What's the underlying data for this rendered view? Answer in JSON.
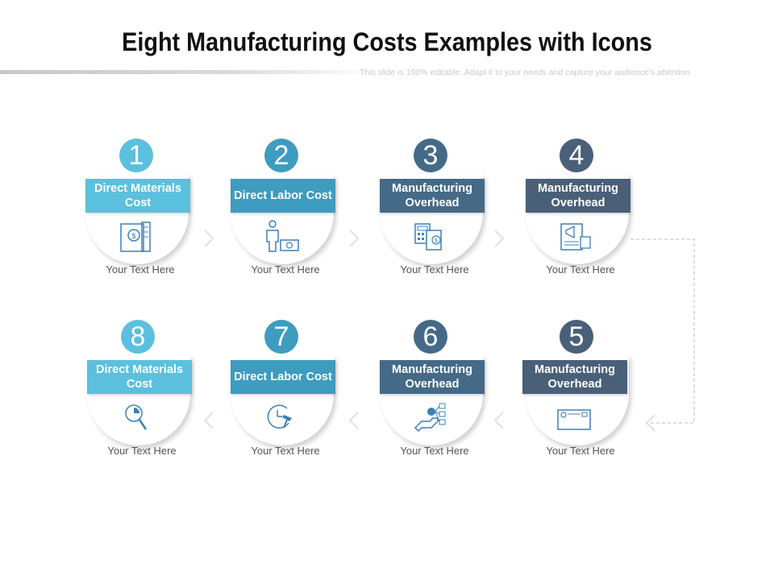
{
  "header": {
    "title": "Eight Manufacturing Costs Examples with Icons",
    "subtitle": "This slide is 100% editable. Adapt it to your needs and capture your audience's attention."
  },
  "colors": {
    "light_blue": "#5bc0de",
    "mid_blue": "#3d9cbf",
    "slate": "#446a88",
    "dark_slate": "#4a5f78",
    "icon_blue": "#3c80b8"
  },
  "steps": [
    {
      "number": "1",
      "label": "Direct Materials Cost",
      "text": "Your Text Here",
      "icon": "money-document-icon"
    },
    {
      "number": "2",
      "label": "Direct Labor Cost",
      "text": "Your Text Here",
      "icon": "worker-cash-icon"
    },
    {
      "number": "3",
      "label": "Manufacturing Overhead",
      "text": "Your Text Here",
      "icon": "calculator-invoice-icon"
    },
    {
      "number": "4",
      "label": "Manufacturing Overhead",
      "text": "Your Text Here",
      "icon": "marketing-report-icon"
    },
    {
      "number": "5",
      "label": "Manufacturing Overhead",
      "text": "Your Text Here",
      "icon": "envelope-icon"
    },
    {
      "number": "6",
      "label": "Manufacturing Overhead",
      "text": "Your Text Here",
      "icon": "hand-network-icon"
    },
    {
      "number": "7",
      "label": "Direct Labor Cost",
      "text": "Your Text Here",
      "icon": "clock-hammer-icon"
    },
    {
      "number": "8",
      "label": "Direct Materials Cost",
      "text": "Your Text Here",
      "icon": "magnifier-chart-icon"
    }
  ]
}
